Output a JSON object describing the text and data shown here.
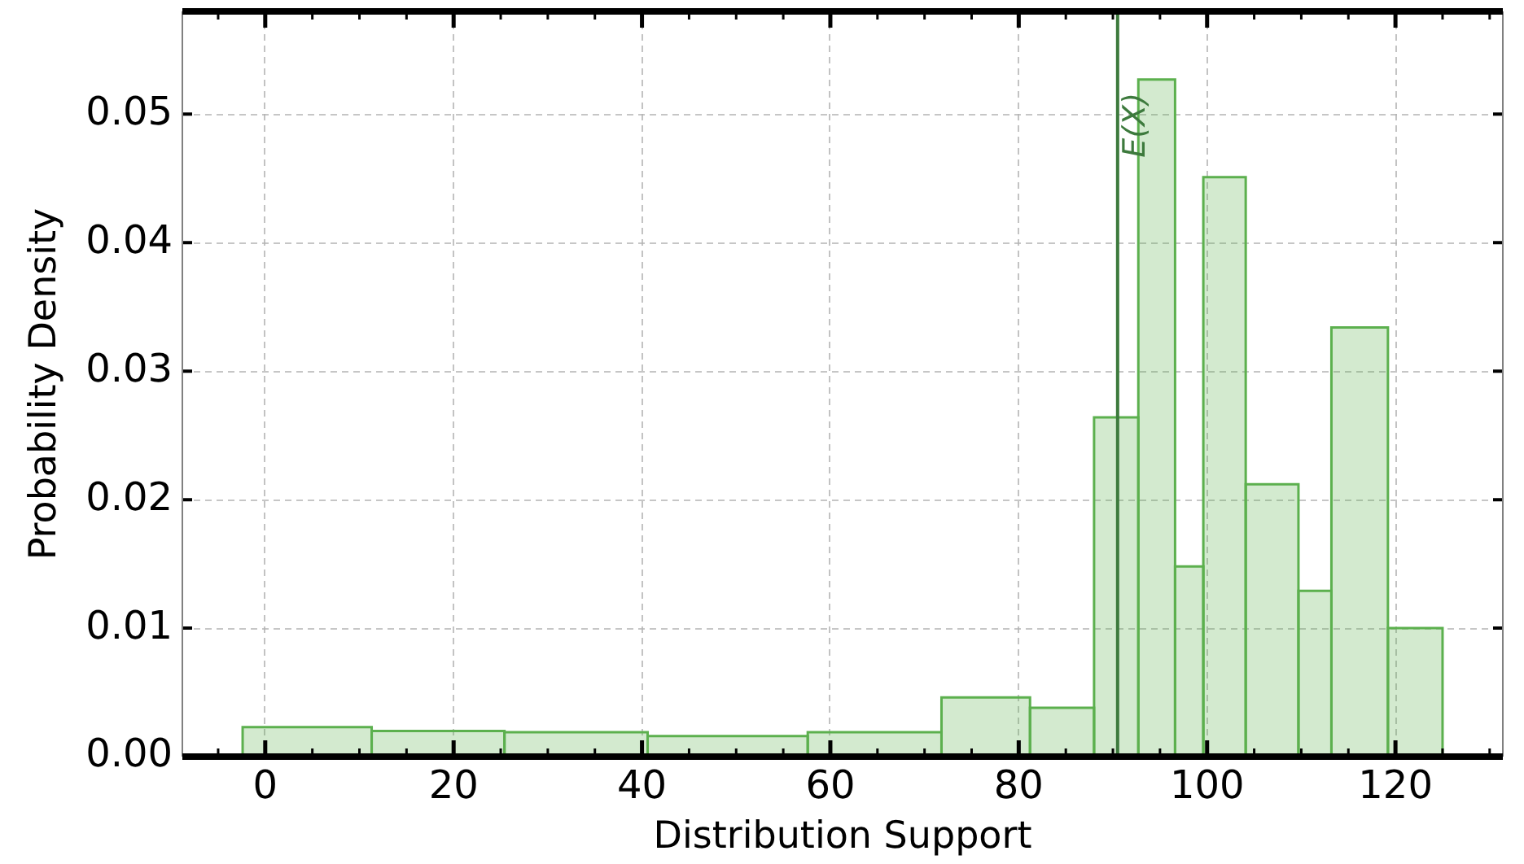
{
  "chart_data": {
    "type": "histogram",
    "xlabel": "Distribution Support",
    "ylabel": "Probability Density",
    "bins": [
      -2.4,
      11.3,
      25.4,
      40.6,
      57.6,
      71.8,
      81.2,
      88.0,
      92.7,
      96.6,
      99.6,
      104.1,
      109.7,
      113.2,
      119.2,
      125.0
    ],
    "values": [
      0.0023,
      0.002,
      0.0019,
      0.0016,
      0.0019,
      0.0046,
      0.0038,
      0.0264,
      0.0527,
      0.0148,
      0.0451,
      0.0212,
      0.0129,
      0.0334,
      0.01
    ],
    "color": "#5cb04e",
    "xlim": [
      -8.8,
      131.4
    ],
    "ylim": [
      0,
      0.058
    ],
    "xticks": [
      {
        "value": -5,
        "label": null
      },
      0,
      {
        "value": 5,
        "label": null
      },
      {
        "value": 10,
        "label": null
      },
      {
        "value": 15,
        "label": null
      },
      20,
      {
        "value": 25,
        "label": null
      },
      {
        "value": 30,
        "label": null
      },
      {
        "value": 35,
        "label": null
      },
      40,
      {
        "value": 45,
        "label": null
      },
      {
        "value": 50,
        "label": null
      },
      {
        "value": 55,
        "label": null
      },
      60,
      {
        "value": 65,
        "label": null
      },
      {
        "value": 70,
        "label": null
      },
      {
        "value": 75,
        "label": null
      },
      80,
      {
        "value": 85,
        "label": null
      },
      {
        "value": 90,
        "label": null
      },
      {
        "value": 95,
        "label": null
      },
      100,
      {
        "value": 105,
        "label": null
      },
      {
        "value": 110,
        "label": null
      },
      {
        "value": 115,
        "label": null
      },
      120,
      {
        "value": 125,
        "label": null
      },
      {
        "value": 130,
        "label": null
      }
    ],
    "yticks": [
      {
        "value": 0,
        "label": "0.00"
      },
      0.01,
      0.02,
      0.03,
      0.04,
      0.05
    ],
    "grid": true,
    "ref_lines": [
      {
        "axis": "x",
        "value": 90.5,
        "label": "E(X)",
        "color": "#3d7a3d"
      }
    ]
  }
}
